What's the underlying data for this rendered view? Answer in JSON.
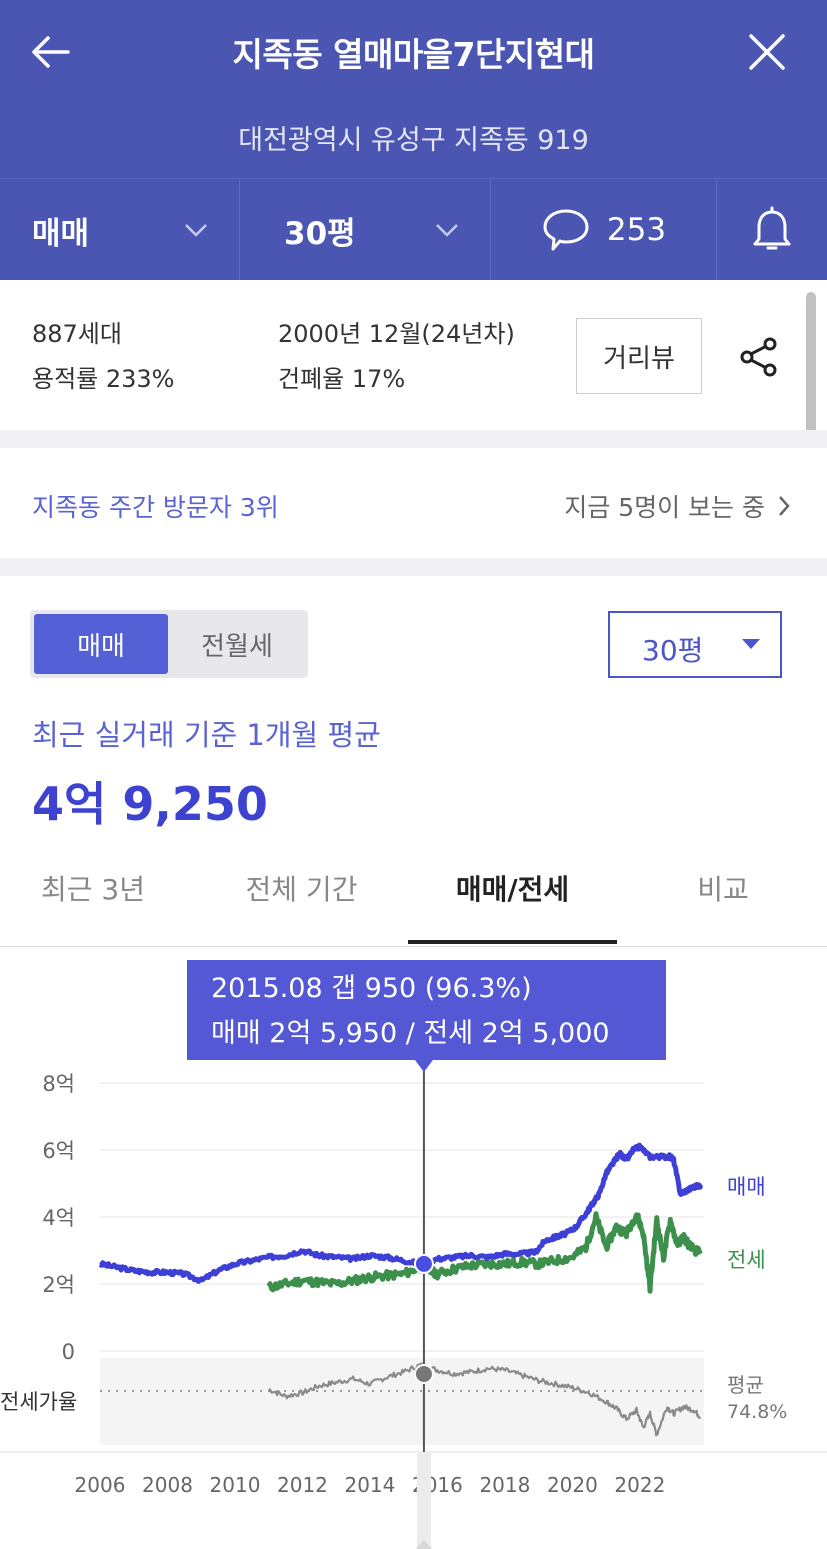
{
  "header": {
    "title": "지족동 열매마을7단지현대",
    "address": "대전광역시 유성구 지족동 919"
  },
  "toolbar": {
    "deal_type": "매매",
    "size": "30평",
    "comment_count": "253"
  },
  "info": {
    "households": "887세대",
    "floor_area_ratio": "용적률 233%",
    "built": "2000년 12월(24년차)",
    "coverage_ratio": "건폐율 17%",
    "street_view_label": "거리뷰"
  },
  "visitors": {
    "rank": "지족동 주간 방문자 3위",
    "viewers": "지금 5명이 보는 중"
  },
  "price": {
    "toggle": [
      "매매",
      "전월세"
    ],
    "selected_toggle": "매매",
    "size_select": "30평",
    "avg_label": "최근 실거래 기준 1개월 평균",
    "avg_value": "4억 9,250"
  },
  "tabs": [
    {
      "label": "최근 3년",
      "active": false
    },
    {
      "label": "전체 기간",
      "active": false
    },
    {
      "label": "매매/전세",
      "active": true
    },
    {
      "label": "비교",
      "active": false
    }
  ],
  "colors": {
    "header_bg": "#4b56b2",
    "accent": "#5458d4",
    "sale_line": "#3d3fd6",
    "jeonse_line": "#3d8f4c",
    "ratio_line": "#8a8a8a"
  },
  "chart_data": {
    "type": "line",
    "tooltip": {
      "line1": "2015.08  갭 950 (96.3%)",
      "line2": "매매 2억 5,950 / 전세 2억 5,000"
    },
    "ylabel_ticks": [
      "8억",
      "6억",
      "4억",
      "2억",
      "0"
    ],
    "ylim": [
      0,
      8
    ],
    "xlim": [
      2006,
      2023.9
    ],
    "x_ticks": [
      "2006",
      "2008",
      "2010",
      "2012",
      "2014",
      "2016",
      "2018",
      "2020",
      "2022"
    ],
    "ratio_label": "전세가율",
    "ratio_avg_label": "평균",
    "ratio_avg_value": "74.8%",
    "cursor_x": 2015.6,
    "series": [
      {
        "name": "매매",
        "x": [
          2006.0,
          2006.5,
          2007.0,
          2007.5,
          2008.0,
          2008.5,
          2009.0,
          2009.5,
          2010.0,
          2010.5,
          2011.0,
          2011.5,
          2012.0,
          2012.5,
          2013.0,
          2013.5,
          2014.0,
          2014.5,
          2015.0,
          2015.5,
          2016.0,
          2016.5,
          2017.0,
          2017.5,
          2018.0,
          2018.5,
          2018.9,
          2019.2,
          2019.5,
          2019.8,
          2020.1,
          2020.4,
          2020.6,
          2020.8,
          2021.0,
          2021.2,
          2021.4,
          2021.6,
          2021.8,
          2022.0,
          2022.3,
          2022.6,
          2022.9,
          2023.0,
          2023.2,
          2023.4,
          2023.6,
          2023.8
        ],
        "values": [
          2.6,
          2.5,
          2.4,
          2.35,
          2.35,
          2.3,
          2.1,
          2.4,
          2.6,
          2.7,
          2.8,
          2.85,
          3.0,
          2.85,
          2.8,
          2.75,
          2.85,
          2.8,
          2.7,
          2.6,
          2.75,
          2.8,
          2.85,
          2.8,
          2.9,
          2.9,
          2.95,
          3.3,
          3.4,
          3.5,
          3.7,
          4.1,
          4.4,
          4.7,
          5.3,
          5.6,
          5.9,
          5.7,
          6.0,
          6.1,
          5.8,
          5.8,
          5.8,
          5.7,
          4.7,
          4.8,
          4.9,
          4.95
        ]
      },
      {
        "name": "전세",
        "x": [
          2011.0,
          2011.5,
          2012.0,
          2012.5,
          2013.0,
          2013.5,
          2014.0,
          2014.5,
          2015.0,
          2015.5,
          2016.0,
          2016.5,
          2017.0,
          2017.5,
          2018.0,
          2018.5,
          2019.0,
          2019.5,
          2020.0,
          2020.4,
          2020.7,
          2021.0,
          2021.3,
          2021.6,
          2021.9,
          2022.1,
          2022.3,
          2022.5,
          2022.7,
          2022.9,
          2023.1,
          2023.3,
          2023.5,
          2023.8
        ],
        "values": [
          1.9,
          2.0,
          2.1,
          2.05,
          2.0,
          2.1,
          2.2,
          2.25,
          2.3,
          2.5,
          2.3,
          2.45,
          2.55,
          2.6,
          2.6,
          2.65,
          2.6,
          2.7,
          2.8,
          3.1,
          4.0,
          3.1,
          3.7,
          3.5,
          4.1,
          3.5,
          1.9,
          3.9,
          2.8,
          3.9,
          3.2,
          3.4,
          3.1,
          2.9
        ]
      },
      {
        "name": "전세가율",
        "x": [
          2011.0,
          2011.5,
          2012.0,
          2012.5,
          2013.0,
          2013.5,
          2014.0,
          2014.5,
          2015.0,
          2015.5,
          2016.0,
          2016.5,
          2017.0,
          2017.5,
          2018.0,
          2018.5,
          2019.0,
          2019.5,
          2020.0,
          2020.5,
          2021.0,
          2021.3,
          2021.6,
          2021.9,
          2022.1,
          2022.3,
          2022.5,
          2022.8,
          2023.0,
          2023.3,
          2023.6,
          2023.8
        ],
        "values": [
          82,
          78,
          80,
          84,
          86,
          88,
          85,
          89,
          92,
          96,
          93,
          91,
          92,
          94,
          93,
          90,
          87,
          85,
          83,
          80,
          75,
          71,
          65,
          70,
          60,
          68,
          56,
          72,
          68,
          72,
          70,
          66
        ]
      }
    ]
  }
}
